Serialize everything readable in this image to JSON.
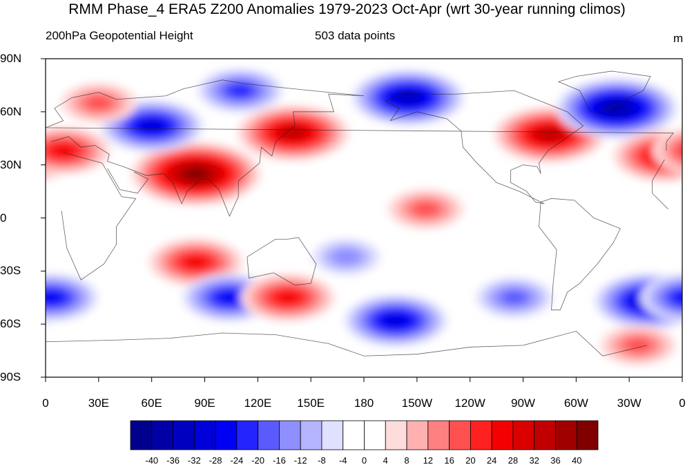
{
  "title": "RMM Phase_4 ERA5 Z200 Anomalies 1979-2023 Oct-Apr (wrt 30-year running climos)",
  "subtitle_left": "200hPa Geopotential Height",
  "subtitle_center": "503 data points",
  "units": "m",
  "lat_labels": [
    "90N",
    "60N",
    "30N",
    "0",
    "30S",
    "60S",
    "90S"
  ],
  "lon_labels": [
    "0",
    "30E",
    "60E",
    "90E",
    "120E",
    "150E",
    "180",
    "150W",
    "120W",
    "90W",
    "60W",
    "30W",
    "0"
  ],
  "colorbar": {
    "labels": [
      "-40",
      "-36",
      "-32",
      "-28",
      "-24",
      "-20",
      "-16",
      "-12",
      "-8",
      "-4",
      "0",
      "4",
      "8",
      "12",
      "16",
      "20",
      "24",
      "28",
      "32",
      "36",
      "40"
    ],
    "colors": [
      "#00008c",
      "#0000a6",
      "#0000c0",
      "#0000da",
      "#0000f4",
      "#2424ff",
      "#5a5aff",
      "#8f8fff",
      "#b4b4ff",
      "#e0e0ff",
      "#ffffff",
      "#ffffff",
      "#ffdcdc",
      "#ffb0b0",
      "#ff8080",
      "#ff5050",
      "#ff2020",
      "#f40000",
      "#da0000",
      "#c00000",
      "#a00000",
      "#800000"
    ]
  },
  "chart_data": {
    "type": "heatmap",
    "variable": "200hPa Geopotential Height",
    "units": "m",
    "levels": [
      -40,
      -36,
      -32,
      -28,
      -24,
      -20,
      -16,
      -12,
      -8,
      -4,
      0,
      4,
      8,
      12,
      16,
      20,
      24,
      28,
      32,
      36,
      40
    ],
    "x_range": [
      0,
      360
    ],
    "y_range": [
      -90,
      90
    ],
    "anomaly_centers": [
      {
        "lon": 85,
        "lat": 25,
        "value": 40
      },
      {
        "lon": 60,
        "lat": 52,
        "value": -28
      },
      {
        "lon": 140,
        "lat": 48,
        "value": 32
      },
      {
        "lon": 110,
        "lat": 72,
        "value": -20
      },
      {
        "lon": 205,
        "lat": 68,
        "value": -32
      },
      {
        "lon": 285,
        "lat": 47,
        "value": 32
      },
      {
        "lon": 323,
        "lat": 62,
        "value": -36
      },
      {
        "lon": 350,
        "lat": 35,
        "value": 28
      },
      {
        "lon": 10,
        "lat": 38,
        "value": 24
      },
      {
        "lon": 30,
        "lat": 65,
        "value": 16
      },
      {
        "lon": 85,
        "lat": -25,
        "value": 24
      },
      {
        "lon": 104,
        "lat": -45,
        "value": -24
      },
      {
        "lon": 137,
        "lat": -45,
        "value": 24
      },
      {
        "lon": 198,
        "lat": -58,
        "value": -28
      },
      {
        "lon": 170,
        "lat": -22,
        "value": -12
      },
      {
        "lon": 215,
        "lat": 5,
        "value": 16
      },
      {
        "lon": 342,
        "lat": -47,
        "value": -32
      },
      {
        "lon": 3,
        "lat": -45,
        "value": -24
      },
      {
        "lon": 265,
        "lat": -45,
        "value": -16
      },
      {
        "lon": 335,
        "lat": -72,
        "value": 16
      }
    ]
  }
}
